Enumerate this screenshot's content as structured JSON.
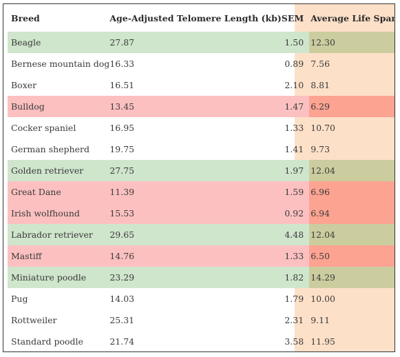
{
  "headers": {
    "breed": "Breed",
    "telomere": "Age-Adjusted Telomere Length (kb)",
    "sem": "SEM",
    "life_span": "Average Life Span (Years)"
  },
  "colors": {
    "good_row": "#cfe5cc",
    "good_life": "#cbcd9f",
    "bad_row": "#fcc0c0",
    "bad_life": "#fca392",
    "life_column": "#fde0c8"
  },
  "rows": [
    {
      "breed": "Beagle",
      "telomere": "27.87",
      "sem": "1.50",
      "life": "12.30",
      "status": "good"
    },
    {
      "breed": "Bernese mountain dog",
      "telomere": "16.33",
      "sem": "0.89",
      "life": "7.56",
      "status": "none"
    },
    {
      "breed": "Boxer",
      "telomere": "16.51",
      "sem": "2.10",
      "life": "8.81",
      "status": "none"
    },
    {
      "breed": "Bulldog",
      "telomere": "13.45",
      "sem": "1.47",
      "life": "6.29",
      "status": "bad"
    },
    {
      "breed": "Cocker spaniel",
      "telomere": "16.95",
      "sem": "1.33",
      "life": "10.70",
      "status": "none"
    },
    {
      "breed": "German shepherd",
      "telomere": "19.75",
      "sem": "1.41",
      "life": "9.73",
      "status": "none"
    },
    {
      "breed": "Golden retriever",
      "telomere": "27.75",
      "sem": "1.97",
      "life": "12.04",
      "status": "good"
    },
    {
      "breed": "Great Dane",
      "telomere": "11.39",
      "sem": "1.59",
      "life": "6.96",
      "status": "bad"
    },
    {
      "breed": "Irish wolfhound",
      "telomere": "15.53",
      "sem": "0.92",
      "life": "6.94",
      "status": "bad"
    },
    {
      "breed": "Labrador retriever",
      "telomere": "29.65",
      "sem": "4.48",
      "life": "12.04",
      "status": "good"
    },
    {
      "breed": "Mastiff",
      "telomere": "14.76",
      "sem": "1.33",
      "life": "6.50",
      "status": "bad"
    },
    {
      "breed": "Miniature poodle",
      "telomere": "23.29",
      "sem": "1.82",
      "life": "14.29",
      "status": "good"
    },
    {
      "breed": "Pug",
      "telomere": "14.03",
      "sem": "1.79",
      "life": "10.00",
      "status": "none"
    },
    {
      "breed": "Rottweiler",
      "telomere": "25.31",
      "sem": "2.31",
      "life": "9.11",
      "status": "none"
    },
    {
      "breed": "Standard poodle",
      "telomere": "21.74",
      "sem": "3.58",
      "life": "11.95",
      "status": "none"
    }
  ]
}
